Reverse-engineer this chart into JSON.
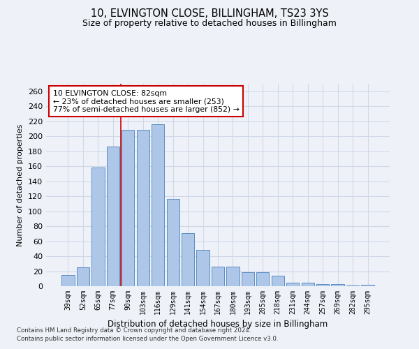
{
  "title": "10, ELVINGTON CLOSE, BILLINGHAM, TS23 3YS",
  "subtitle": "Size of property relative to detached houses in Billingham",
  "xlabel": "Distribution of detached houses by size in Billingham",
  "ylabel": "Number of detached properties",
  "categories": [
    "39sqm",
    "52sqm",
    "65sqm",
    "77sqm",
    "90sqm",
    "103sqm",
    "116sqm",
    "129sqm",
    "141sqm",
    "154sqm",
    "167sqm",
    "180sqm",
    "193sqm",
    "205sqm",
    "218sqm",
    "231sqm",
    "244sqm",
    "257sqm",
    "269sqm",
    "282sqm",
    "295sqm"
  ],
  "values": [
    15,
    25,
    158,
    186,
    209,
    209,
    216,
    116,
    71,
    48,
    26,
    26,
    19,
    19,
    14,
    5,
    5,
    3,
    3,
    1,
    2
  ],
  "bar_color": "#aec6e8",
  "bar_edge_color": "#5b8ec4",
  "grid_color": "#d0d8e8",
  "background_color": "#eef2f8",
  "vline_index": 3,
  "vline_color": "#cc0000",
  "annotation_text": "10 ELVINGTON CLOSE: 82sqm\n← 23% of detached houses are smaller (253)\n77% of semi-detached houses are larger (852) →",
  "annotation_box_color": "#ffffff",
  "annotation_box_edge": "#cc0000",
  "footer1": "Contains HM Land Registry data © Crown copyright and database right 2024.",
  "footer2": "Contains public sector information licensed under the Open Government Licence v3.0.",
  "ylim": [
    0,
    270
  ],
  "yticks": [
    0,
    20,
    40,
    60,
    80,
    100,
    120,
    140,
    160,
    180,
    200,
    220,
    240,
    260
  ]
}
